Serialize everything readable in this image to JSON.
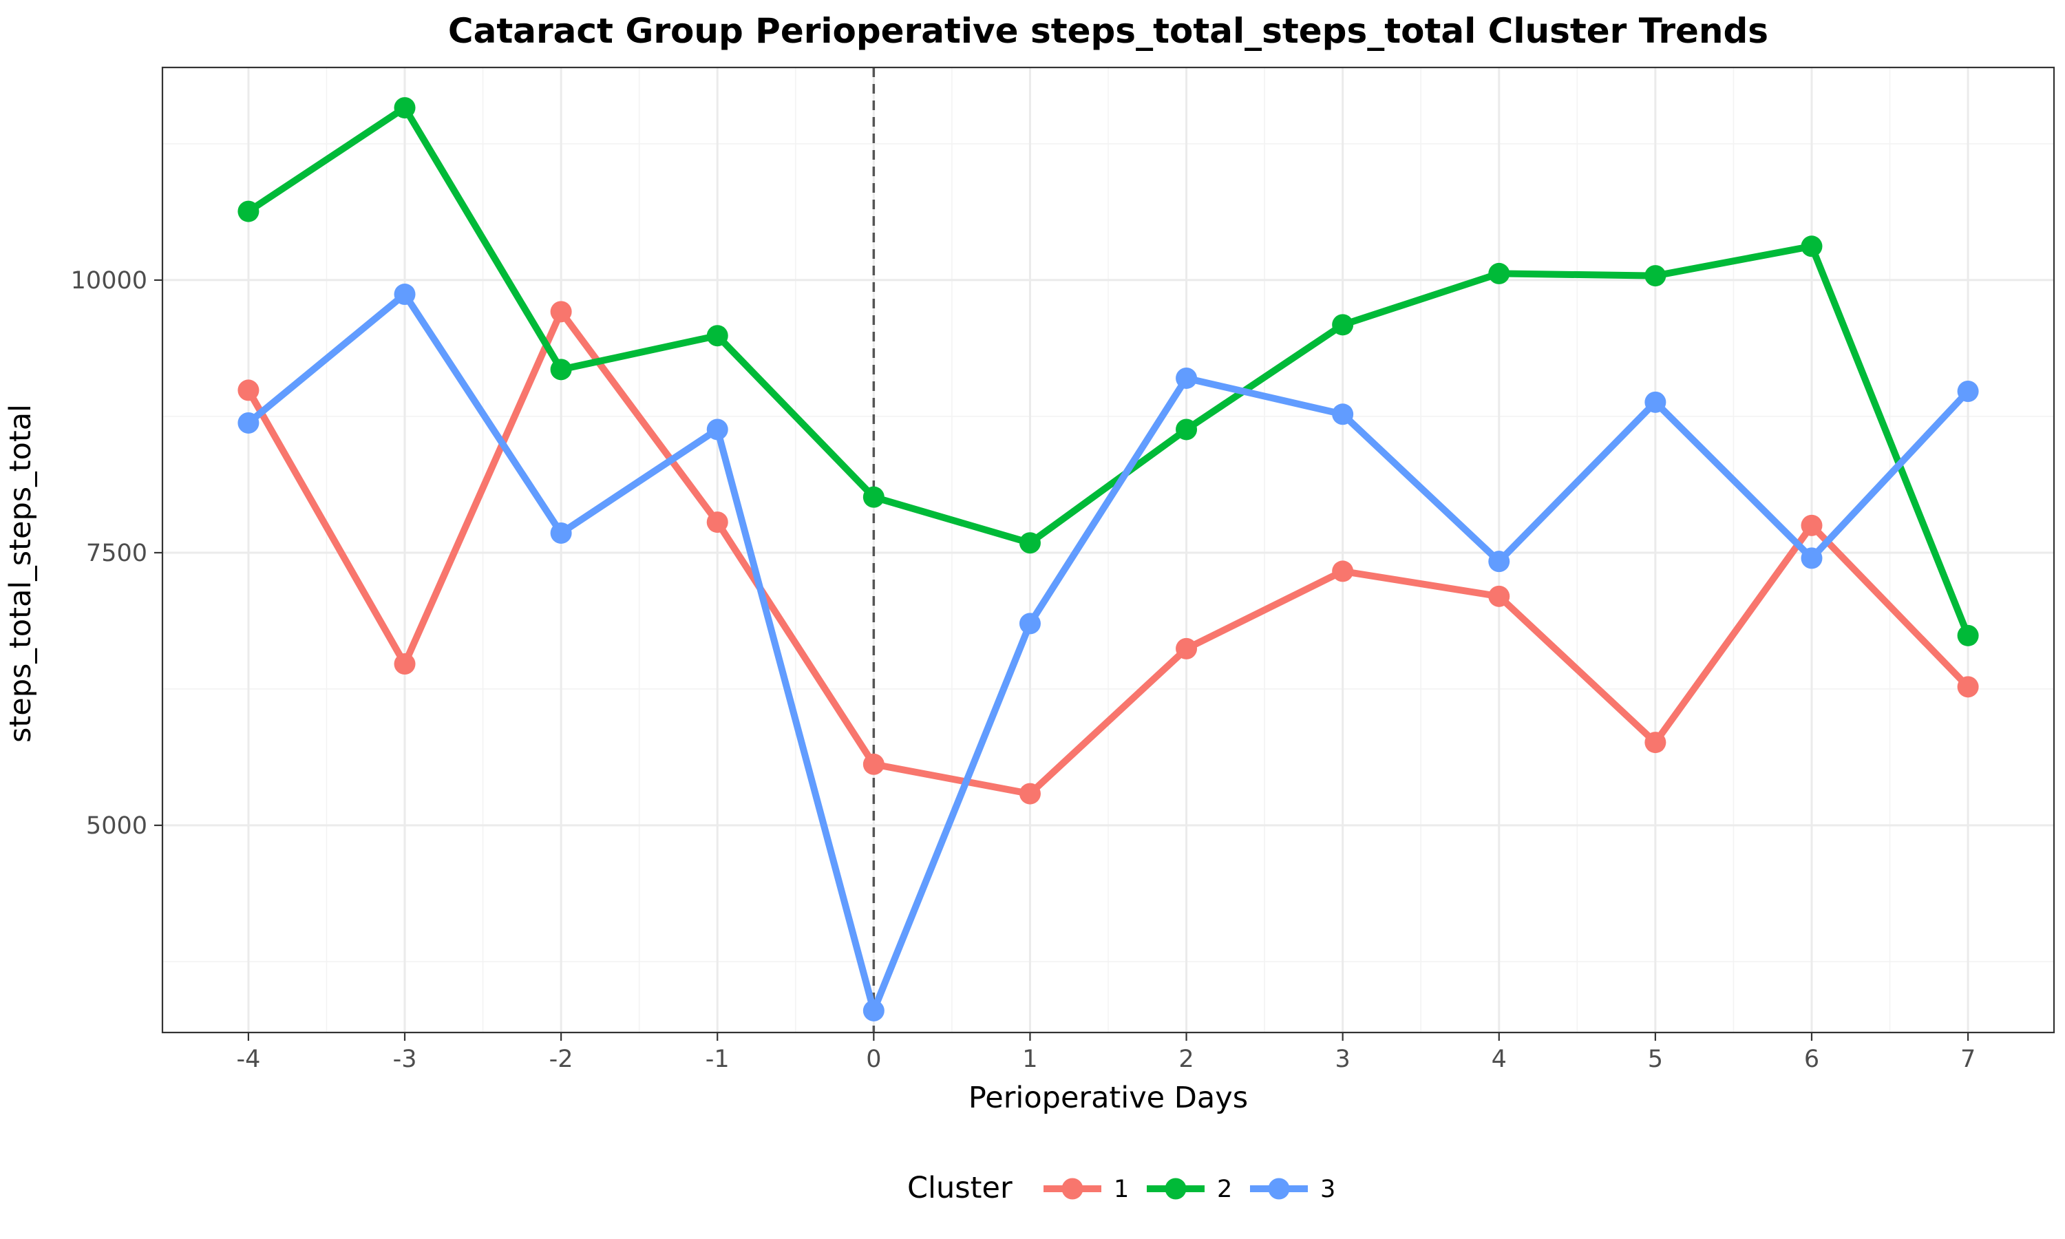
{
  "chart_data": {
    "type": "line",
    "title": "Cataract Group Perioperative steps_total_steps_total Cluster Trends",
    "xlabel": "Perioperative Days",
    "ylabel": "steps_total_steps_total",
    "x": [
      -4,
      -3,
      -2,
      -1,
      0,
      1,
      2,
      3,
      4,
      5,
      6,
      7
    ],
    "x_ticks": [
      "-4",
      "-3",
      "-2",
      "-1",
      "0",
      "1",
      "2",
      "3",
      "4",
      "5",
      "6",
      "7"
    ],
    "y_ticks": [
      5000,
      7500,
      10000
    ],
    "y_tick_labels": [
      "5000",
      "7500",
      "10000"
    ],
    "xlim": [
      -4.55,
      7.55
    ],
    "ylim": [
      3100,
      11950
    ],
    "reference_line": {
      "x": 0,
      "style": "dashed"
    },
    "grid": true,
    "legend": {
      "title": "Cluster",
      "position": "bottom"
    },
    "series": [
      {
        "name": "1",
        "color": "#F8766D",
        "values": [
          8990,
          6480,
          9710,
          7780,
          5560,
          5290,
          6620,
          7330,
          7100,
          5760,
          7750,
          6270
        ]
      },
      {
        "name": "2",
        "color": "#00BA38",
        "values": [
          10630,
          11580,
          9180,
          9490,
          8010,
          7590,
          8630,
          9590,
          10060,
          10040,
          10310,
          6740
        ]
      },
      {
        "name": "3",
        "color": "#619CFF",
        "values": [
          8690,
          9870,
          7680,
          8630,
          3300,
          6850,
          9100,
          8770,
          7420,
          8880,
          7450,
          8980
        ]
      }
    ]
  }
}
